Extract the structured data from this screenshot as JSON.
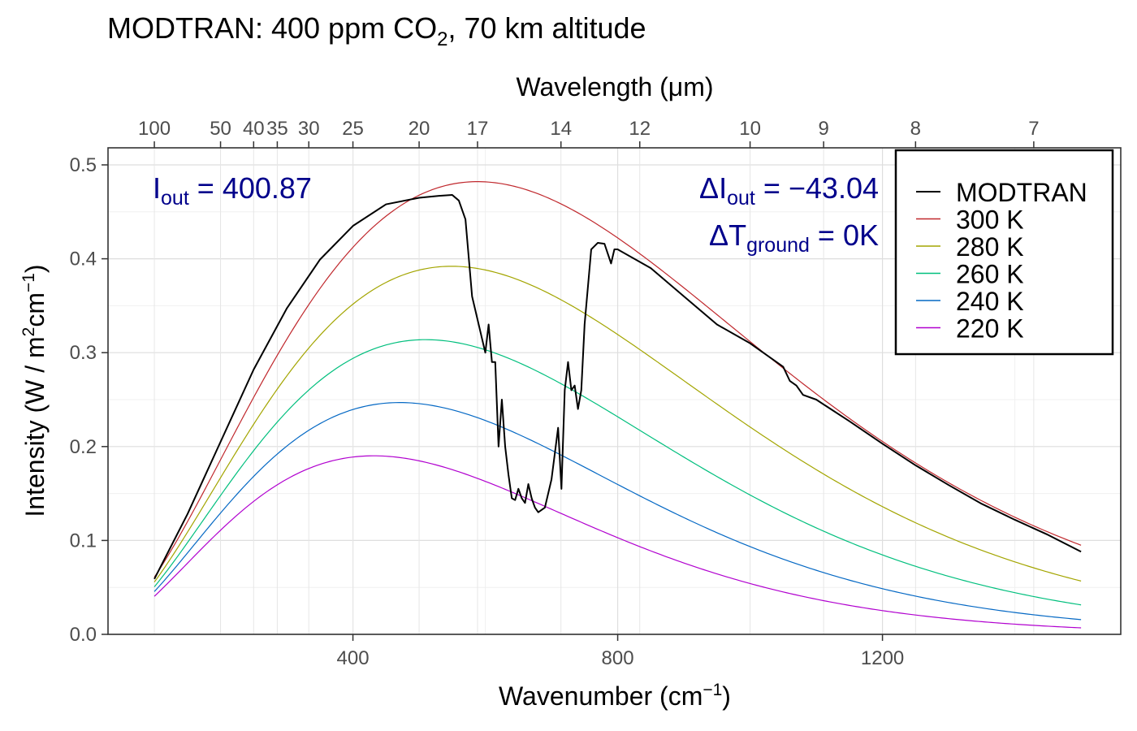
{
  "chart_data": {
    "type": "line",
    "title": {
      "main": "MODTRAN: 400 ppm CO",
      "sub": "2",
      "tail": ", 70 km altitude"
    },
    "xlabel": {
      "main": "Wavenumber (cm",
      "sup": "−1",
      "tail": ")"
    },
    "ylabel": {
      "main": "Intensity (W / m",
      "sup1": "2",
      "mid": "cm",
      "sup2": "−1",
      "tail": ")"
    },
    "top_axis_label": "Wavelength (μm)",
    "xlim": [
      100,
      1500
    ],
    "ylim": [
      0,
      0.5
    ],
    "grid": true,
    "legend_position": "top-right",
    "x_ticks": [
      400,
      800,
      1200
    ],
    "x_tick_labels": [
      "400",
      "800",
      "1200"
    ],
    "y_ticks": [
      0.0,
      0.1,
      0.2,
      0.3,
      0.4,
      0.5
    ],
    "y_tick_labels": [
      "0.0",
      "0.1",
      "0.2",
      "0.3",
      "0.4",
      "0.5"
    ],
    "top_ticks_um": [
      100,
      50,
      40,
      35,
      30,
      25,
      20,
      17,
      14,
      12,
      10,
      9,
      8,
      7
    ],
    "top_tick_labels": [
      "100",
      "50",
      "40",
      "35",
      "30",
      "25",
      "20",
      "17",
      "14",
      "12",
      "10",
      "9",
      "8",
      "7"
    ],
    "annotations": {
      "iout": {
        "base": "I",
        "sub": "out",
        "eq": " = ",
        "value": "400.87"
      },
      "delta_iout": {
        "delta": "Δ",
        "base": "I",
        "sub": "out",
        "eq": " = ",
        "value": "−43.04"
      },
      "delta_tground": {
        "delta": "Δ",
        "base": "T",
        "sub": "ground",
        "eq": " = ",
        "value": "0K"
      }
    },
    "planck_series": [
      {
        "name": "300 K",
        "temperature": 300,
        "color": "#c0282d"
      },
      {
        "name": "280 K",
        "temperature": 280,
        "color": "#a3a500"
      },
      {
        "name": "260 K",
        "temperature": 260,
        "color": "#00bf7d"
      },
      {
        "name": "240 K",
        "temperature": 240,
        "color": "#0468c4"
      },
      {
        "name": "220 K",
        "temperature": 220,
        "color": "#b100cf"
      }
    ],
    "modtran_series": {
      "name": "MODTRAN",
      "color": "#000000",
      "x": [
        100,
        150,
        200,
        250,
        300,
        350,
        400,
        450,
        500,
        530,
        550,
        560,
        570,
        580,
        590,
        600,
        605,
        610,
        615,
        620,
        625,
        630,
        635,
        640,
        645,
        650,
        655,
        660,
        665,
        670,
        675,
        680,
        690,
        700,
        710,
        715,
        720,
        725,
        730,
        735,
        740,
        745,
        750,
        755,
        760,
        770,
        780,
        790,
        795,
        800,
        850,
        900,
        950,
        1000,
        1050,
        1060,
        1070,
        1080,
        1100,
        1150,
        1200,
        1250,
        1300,
        1350,
        1400,
        1450,
        1500
      ],
      "y": [
        0.059,
        0.128,
        0.205,
        0.282,
        0.347,
        0.399,
        0.435,
        0.458,
        0.465,
        0.467,
        0.468,
        0.462,
        0.442,
        0.36,
        0.33,
        0.3,
        0.33,
        0.29,
        0.29,
        0.2,
        0.25,
        0.2,
        0.17,
        0.145,
        0.143,
        0.155,
        0.145,
        0.14,
        0.16,
        0.145,
        0.135,
        0.13,
        0.135,
        0.165,
        0.22,
        0.155,
        0.26,
        0.29,
        0.26,
        0.265,
        0.24,
        0.26,
        0.33,
        0.37,
        0.41,
        0.417,
        0.416,
        0.395,
        0.41,
        0.41,
        0.39,
        0.36,
        0.33,
        0.31,
        0.285,
        0.27,
        0.265,
        0.255,
        0.25,
        0.227,
        0.203,
        0.18,
        0.159,
        0.139,
        0.122,
        0.106,
        0.088
      ]
    }
  }
}
